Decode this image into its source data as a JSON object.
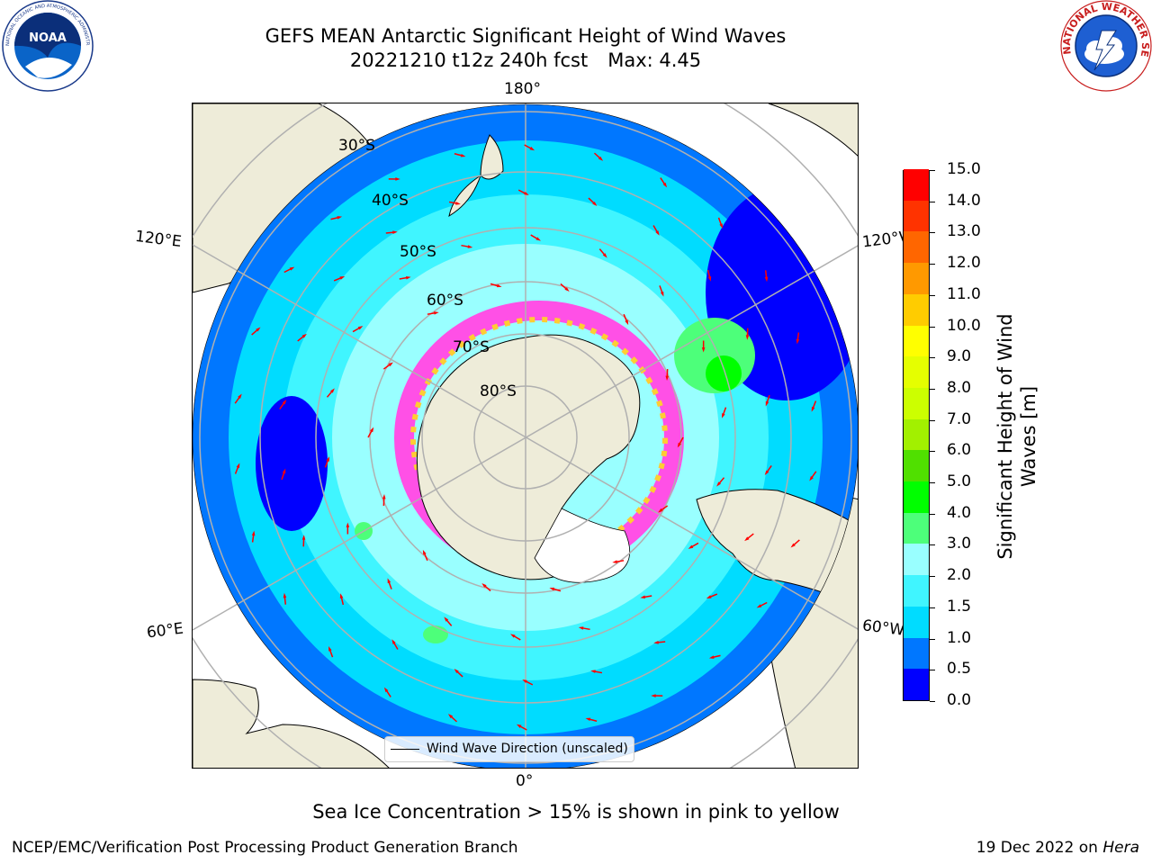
{
  "header": {
    "title_line1": "GEFS MEAN Antarctic Significant Height of Wind Waves",
    "title_date": "20221210 t12z 240h fcst",
    "title_max": "Max: 4.45"
  },
  "logos": {
    "left": "NOAA",
    "left_ring_text": "NATIONAL OCEANIC AND ATMOSPHERIC ADMINISTRATION · U.S. DEPARTMENT OF COMMERCE",
    "right_ring_text": "NATIONAL WEATHER SERVICE"
  },
  "map": {
    "projection": "south polar stereographic",
    "lon_labels": {
      "top": "180°",
      "bottom": "0°",
      "upper_left": "120°E",
      "upper_right": "120°W",
      "lower_left": "60°E",
      "lower_right": "60°W"
    },
    "lat_labels": [
      "30°S",
      "40°S",
      "50°S",
      "60°S",
      "70°S",
      "80°S"
    ],
    "legend_label": "Wind Wave Direction (unscaled)",
    "colors": {
      "land": "#eeecd9",
      "ice_shelf": "#ffffff",
      "arrow": "#ff0000",
      "grid": "#b0b0b0"
    }
  },
  "colorbar": {
    "label": "Significant Height of Wind Waves [m]",
    "ticks": [
      "0.0",
      "0.5",
      "1.0",
      "1.5",
      "2.0",
      "3.0",
      "4.0",
      "5.0",
      "6.0",
      "7.0",
      "8.0",
      "9.0",
      "10.0",
      "11.0",
      "12.0",
      "13.0",
      "14.0",
      "15.0"
    ],
    "colors": [
      "#0000ff",
      "#0077ff",
      "#00dcff",
      "#40f5ff",
      "#99ffff",
      "#4dff7a",
      "#00ff00",
      "#50e000",
      "#a2f000",
      "#ccff00",
      "#e5ff00",
      "#ffff00",
      "#ffcc00",
      "#ff9900",
      "#ff6600",
      "#ff3300",
      "#ff0000"
    ],
    "icon": "colorbar-icon"
  },
  "footer": {
    "note": "Sea Ice Concentration > 15% is shown in pink to yellow",
    "left": "NCEP/EMC/Verification Post Processing Product Generation Branch",
    "right_prefix": "19 Dec 2022 on",
    "right_system": "Hera"
  }
}
